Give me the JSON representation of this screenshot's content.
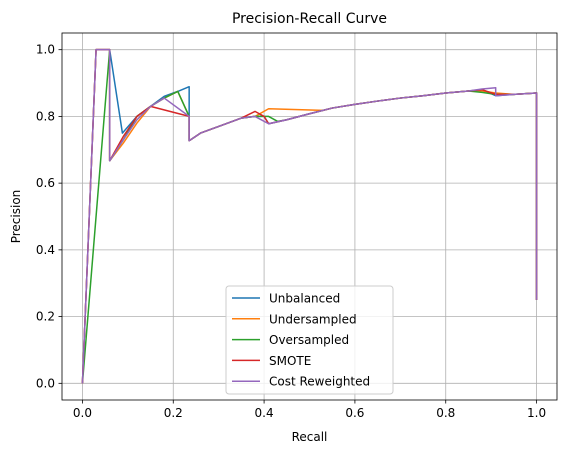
{
  "chart_data": {
    "type": "line",
    "title": "Precision-Recall Curve",
    "xlabel": "Recall",
    "ylabel": "Precision",
    "xlim": [
      -0.045,
      1.045
    ],
    "ylim": [
      -0.05,
      1.05
    ],
    "xticks": [
      0.0,
      0.2,
      0.4,
      0.6,
      0.8,
      1.0
    ],
    "xtick_labels": [
      "0.0",
      "0.2",
      "0.4",
      "0.6",
      "0.8",
      "1.0"
    ],
    "yticks": [
      0.0,
      0.2,
      0.4,
      0.6,
      0.8,
      1.0
    ],
    "ytick_labels": [
      "0.0",
      "0.2",
      "0.4",
      "0.6",
      "0.8",
      "1.0"
    ],
    "grid": true,
    "legend_position": "lower-center",
    "series": [
      {
        "name": "Unbalanced",
        "color": "#1f77b4",
        "points": [
          [
            0.0,
            0.0
          ],
          [
            0.03,
            1.0
          ],
          [
            0.06,
            1.0
          ],
          [
            0.088,
            0.75
          ],
          [
            0.12,
            0.8
          ],
          [
            0.15,
            0.83
          ],
          [
            0.18,
            0.86
          ],
          [
            0.21,
            0.875
          ],
          [
            0.235,
            0.889
          ],
          [
            0.235,
            0.727
          ],
          [
            0.26,
            0.75
          ],
          [
            0.3,
            0.77
          ],
          [
            0.35,
            0.795
          ],
          [
            0.38,
            0.8
          ],
          [
            0.4,
            0.8
          ],
          [
            0.41,
            0.778
          ],
          [
            0.45,
            0.79
          ],
          [
            0.5,
            0.808
          ],
          [
            0.55,
            0.825
          ],
          [
            0.6,
            0.836
          ],
          [
            0.65,
            0.846
          ],
          [
            0.7,
            0.855
          ],
          [
            0.75,
            0.862
          ],
          [
            0.8,
            0.87
          ],
          [
            0.85,
            0.876
          ],
          [
            0.88,
            0.88
          ],
          [
            0.91,
            0.862
          ],
          [
            0.95,
            0.866
          ],
          [
            1.0,
            0.87
          ],
          [
            1.0,
            0.25
          ]
        ]
      },
      {
        "name": "Undersampled",
        "color": "#ff7f0e",
        "points": [
          [
            0.0,
            0.0
          ],
          [
            0.03,
            1.0
          ],
          [
            0.06,
            1.0
          ],
          [
            0.06,
            0.667
          ],
          [
            0.09,
            0.72
          ],
          [
            0.12,
            0.78
          ],
          [
            0.15,
            0.83
          ],
          [
            0.18,
            0.855
          ],
          [
            0.21,
            0.875
          ],
          [
            0.235,
            0.8
          ],
          [
            0.235,
            0.727
          ],
          [
            0.26,
            0.75
          ],
          [
            0.3,
            0.77
          ],
          [
            0.35,
            0.795
          ],
          [
            0.38,
            0.8
          ],
          [
            0.41,
            0.823
          ],
          [
            0.53,
            0.818
          ],
          [
            0.55,
            0.825
          ],
          [
            0.6,
            0.836
          ],
          [
            0.65,
            0.846
          ],
          [
            0.7,
            0.855
          ],
          [
            0.75,
            0.862
          ],
          [
            0.8,
            0.87
          ],
          [
            0.85,
            0.876
          ],
          [
            0.88,
            0.876
          ],
          [
            0.91,
            0.87
          ],
          [
            0.95,
            0.866
          ],
          [
            1.0,
            0.87
          ],
          [
            1.0,
            0.25
          ]
        ]
      },
      {
        "name": "Oversampled",
        "color": "#2ca02c",
        "points": [
          [
            0.0,
            0.0
          ],
          [
            0.06,
            1.0
          ],
          [
            0.06,
            0.667
          ],
          [
            0.09,
            0.73
          ],
          [
            0.12,
            0.8
          ],
          [
            0.15,
            0.83
          ],
          [
            0.18,
            0.855
          ],
          [
            0.21,
            0.875
          ],
          [
            0.235,
            0.8
          ],
          [
            0.235,
            0.727
          ],
          [
            0.26,
            0.75
          ],
          [
            0.3,
            0.77
          ],
          [
            0.35,
            0.795
          ],
          [
            0.38,
            0.8
          ],
          [
            0.4,
            0.8
          ],
          [
            0.41,
            0.8
          ],
          [
            0.43,
            0.785
          ],
          [
            0.45,
            0.79
          ],
          [
            0.5,
            0.808
          ],
          [
            0.55,
            0.825
          ],
          [
            0.6,
            0.836
          ],
          [
            0.65,
            0.846
          ],
          [
            0.7,
            0.855
          ],
          [
            0.75,
            0.862
          ],
          [
            0.8,
            0.87
          ],
          [
            0.85,
            0.876
          ],
          [
            0.88,
            0.872
          ],
          [
            0.91,
            0.866
          ],
          [
            0.95,
            0.866
          ],
          [
            1.0,
            0.87
          ],
          [
            1.0,
            0.25
          ]
        ]
      },
      {
        "name": "SMOTE",
        "color": "#d62728",
        "points": [
          [
            0.0,
            0.0
          ],
          [
            0.03,
            1.0
          ],
          [
            0.06,
            1.0
          ],
          [
            0.06,
            0.667
          ],
          [
            0.09,
            0.74
          ],
          [
            0.12,
            0.8
          ],
          [
            0.15,
            0.83
          ],
          [
            0.235,
            0.8
          ],
          [
            0.235,
            0.727
          ],
          [
            0.26,
            0.75
          ],
          [
            0.3,
            0.77
          ],
          [
            0.35,
            0.795
          ],
          [
            0.38,
            0.815
          ],
          [
            0.4,
            0.8
          ],
          [
            0.41,
            0.778
          ],
          [
            0.45,
            0.79
          ],
          [
            0.5,
            0.808
          ],
          [
            0.55,
            0.825
          ],
          [
            0.6,
            0.836
          ],
          [
            0.65,
            0.846
          ],
          [
            0.7,
            0.855
          ],
          [
            0.75,
            0.862
          ],
          [
            0.8,
            0.87
          ],
          [
            0.85,
            0.876
          ],
          [
            0.88,
            0.88
          ],
          [
            0.91,
            0.866
          ],
          [
            0.95,
            0.866
          ],
          [
            1.0,
            0.87
          ],
          [
            1.0,
            0.25
          ]
        ]
      },
      {
        "name": "Cost Reweighted",
        "color": "#9467bd",
        "points": [
          [
            0.0,
            0.0
          ],
          [
            0.03,
            1.0
          ],
          [
            0.06,
            1.0
          ],
          [
            0.06,
            0.667
          ],
          [
            0.09,
            0.73
          ],
          [
            0.12,
            0.79
          ],
          [
            0.15,
            0.83
          ],
          [
            0.18,
            0.855
          ],
          [
            0.235,
            0.8
          ],
          [
            0.235,
            0.727
          ],
          [
            0.26,
            0.75
          ],
          [
            0.3,
            0.77
          ],
          [
            0.35,
            0.795
          ],
          [
            0.38,
            0.8
          ],
          [
            0.41,
            0.778
          ],
          [
            0.45,
            0.79
          ],
          [
            0.5,
            0.808
          ],
          [
            0.55,
            0.825
          ],
          [
            0.6,
            0.836
          ],
          [
            0.65,
            0.846
          ],
          [
            0.7,
            0.855
          ],
          [
            0.75,
            0.862
          ],
          [
            0.8,
            0.87
          ],
          [
            0.85,
            0.876
          ],
          [
            0.88,
            0.882
          ],
          [
            0.91,
            0.886
          ],
          [
            0.91,
            0.862
          ],
          [
            0.95,
            0.866
          ],
          [
            1.0,
            0.87
          ],
          [
            1.0,
            0.25
          ]
        ]
      }
    ]
  }
}
